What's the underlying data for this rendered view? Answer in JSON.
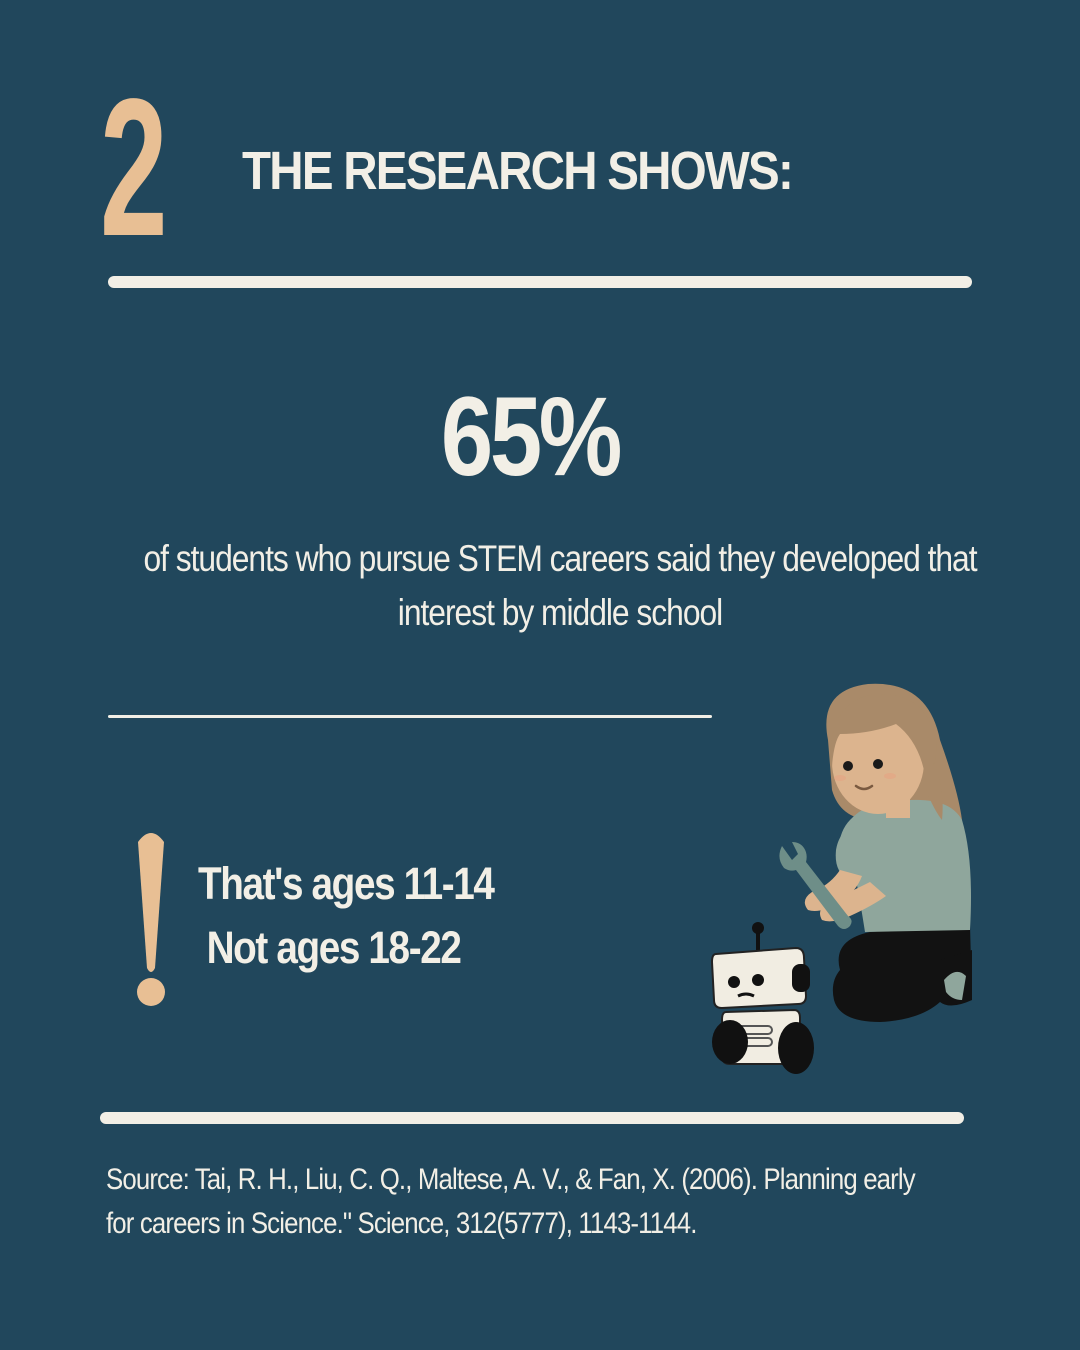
{
  "section": {
    "number": "2",
    "heading": "THE RESEARCH SHOWS:"
  },
  "stat": {
    "value": "65%",
    "caption_line1": "of students who pursue STEM careers said they developed that",
    "caption_line2": "interest by middle school"
  },
  "ages": {
    "line1": "That's ages 11-14",
    "line2": "Not ages 18-22"
  },
  "source": {
    "line1": " Source: Tai, R. H., Liu, C. Q., Maltese, A. V., & Fan, X. (2006). Planning early",
    "line2": "for careers in Science.\" Science, 312(5777), 1143-1144."
  },
  "colors": {
    "background": "#21475c",
    "text": "#f2efe6",
    "accent": "#e8bf94"
  },
  "icons": [
    "exclamation-icon",
    "girl-with-robot-illustration"
  ]
}
